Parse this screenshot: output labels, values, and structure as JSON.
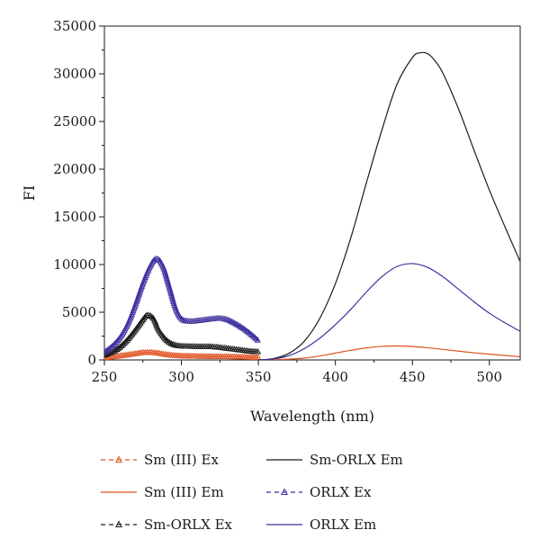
{
  "chart_data": {
    "type": "line",
    "xlabel": "Wavelength (nm)",
    "ylabel": "FI",
    "xlim": [
      250,
      520
    ],
    "ylim": [
      0,
      35000
    ],
    "x_ticks": [
      250,
      300,
      350,
      400,
      450,
      500
    ],
    "y_ticks": [
      0,
      5000,
      10000,
      15000,
      20000,
      25000,
      30000,
      35000
    ],
    "grid": false,
    "legend_position": "bottom",
    "series": [
      {
        "name": "Sm (III) Ex",
        "style": "dash-triangle",
        "color": "#e0501e",
        "x": [
          250,
          255,
          260,
          265,
          270,
          275,
          280,
          285,
          290,
          295,
          300,
          305,
          310,
          315,
          320,
          325,
          330,
          335,
          340,
          345,
          350
        ],
        "y": [
          200,
          320,
          420,
          530,
          650,
          760,
          780,
          700,
          560,
          470,
          420,
          400,
          380,
          370,
          360,
          350,
          340,
          320,
          300,
          270,
          250
        ]
      },
      {
        "name": "Sm (III) Em",
        "style": "solid",
        "color": "#e0501e",
        "x": [
          350,
          360,
          370,
          380,
          390,
          400,
          410,
          420,
          430,
          440,
          450,
          460,
          470,
          480,
          490,
          500,
          510,
          520
        ],
        "y": [
          0,
          20,
          80,
          200,
          420,
          720,
          1010,
          1260,
          1420,
          1460,
          1400,
          1270,
          1100,
          920,
          750,
          600,
          470,
          330
        ]
      },
      {
        "name": "Sm-ORLX Ex",
        "style": "dash-triangle",
        "color": "#1a1a1a",
        "x": [
          250,
          255,
          260,
          265,
          270,
          275,
          278,
          282,
          285,
          290,
          295,
          300,
          305,
          310,
          315,
          320,
          325,
          330,
          335,
          340,
          345,
          350
        ],
        "y": [
          500,
          800,
          1300,
          2100,
          3100,
          4200,
          4700,
          4300,
          3200,
          2100,
          1600,
          1450,
          1420,
          1400,
          1400,
          1380,
          1300,
          1200,
          1100,
          1000,
          900,
          850
        ]
      },
      {
        "name": "Sm-ORLX Em",
        "style": "solid",
        "color": "#1a1a1a",
        "x": [
          350,
          360,
          370,
          380,
          390,
          400,
          410,
          420,
          430,
          440,
          450,
          455,
          460,
          465,
          470,
          480,
          490,
          500,
          510,
          520
        ],
        "y": [
          0,
          150,
          700,
          2000,
          4400,
          8000,
          12800,
          18500,
          24000,
          28900,
          31700,
          32200,
          32100,
          31300,
          30000,
          26300,
          22000,
          17800,
          14000,
          10300
        ]
      },
      {
        "name": "ORLX Ex",
        "style": "dash-triangle",
        "color": "#3b2f9e",
        "x": [
          250,
          255,
          260,
          265,
          270,
          275,
          280,
          284,
          288,
          292,
          296,
          300,
          305,
          310,
          315,
          320,
          325,
          330,
          335,
          340,
          345,
          350
        ],
        "y": [
          800,
          1400,
          2300,
          3700,
          5700,
          8000,
          9900,
          10600,
          9800,
          7700,
          5500,
          4300,
          4050,
          4100,
          4200,
          4300,
          4350,
          4200,
          3800,
          3300,
          2700,
          2000
        ]
      },
      {
        "name": "ORLX Em",
        "style": "solid",
        "color": "#3b2f9e",
        "x": [
          350,
          360,
          370,
          380,
          390,
          400,
          410,
          420,
          430,
          440,
          450,
          460,
          470,
          480,
          490,
          500,
          510,
          520
        ],
        "y": [
          0,
          100,
          450,
          1200,
          2300,
          3700,
          5300,
          7100,
          8700,
          9800,
          10100,
          9700,
          8700,
          7400,
          6100,
          4900,
          3900,
          3000
        ]
      }
    ]
  }
}
